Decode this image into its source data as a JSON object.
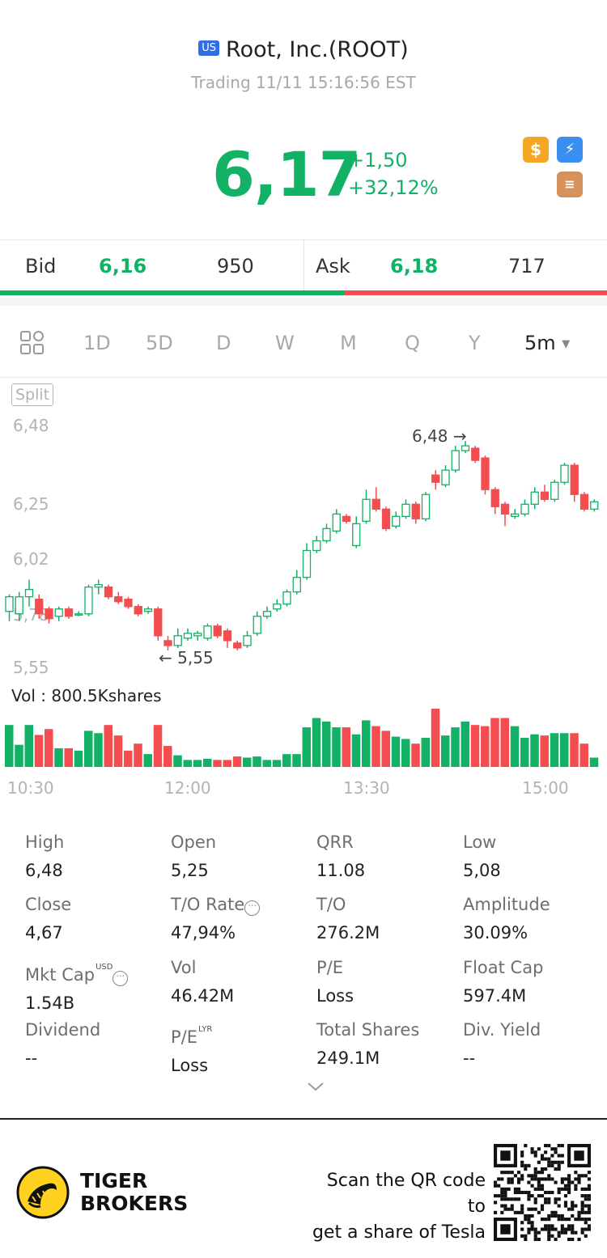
{
  "header": {
    "market_badge": "US",
    "title": "Root, Inc.(ROOT)",
    "status": "Trading 11/11 15:16:56 EST",
    "price": "6,17",
    "change": "+1,50",
    "change_pct": "+32,12%",
    "icons": [
      "dollar-icon",
      "lightning-icon",
      "stack-a-icon"
    ],
    "colors": {
      "up": "#12b165",
      "down": "#f34d50"
    }
  },
  "quote": {
    "bid_label": "Bid",
    "bid_price": "6,16",
    "bid_size": "950",
    "ask_label": "Ask",
    "ask_price": "6,18",
    "ask_size": "717"
  },
  "tabs": {
    "items": [
      "1D",
      "5D",
      "D",
      "W",
      "M",
      "Q",
      "Y"
    ],
    "active": "5m"
  },
  "chart": {
    "split_label": "Split",
    "yticks": [
      "6,48",
      "6,25",
      "6,02",
      "5,78",
      "5,55"
    ],
    "max_label": "6,48",
    "min_label": "5,55",
    "volume_label": "Vol  : 800.5Kshares",
    "xticks": [
      "10:30",
      "12:00",
      "13:30",
      "15:00"
    ]
  },
  "chart_data": {
    "type": "candlestick",
    "interval": "5m",
    "ylim": [
      5.55,
      6.48
    ],
    "candles": [
      [
        5.78,
        5.84,
        5.85,
        5.74
      ],
      [
        5.77,
        5.84,
        5.86,
        5.74
      ],
      [
        5.84,
        5.87,
        5.91,
        5.8
      ],
      [
        5.83,
        5.77,
        5.85,
        5.75
      ],
      [
        5.79,
        5.75,
        5.8,
        5.73
      ],
      [
        5.76,
        5.79,
        5.8,
        5.74
      ],
      [
        5.79,
        5.76,
        5.8,
        5.75
      ],
      [
        5.77,
        5.77,
        5.78,
        5.76
      ],
      [
        5.77,
        5.88,
        5.89,
        5.76
      ],
      [
        5.88,
        5.89,
        5.91,
        5.85
      ],
      [
        5.88,
        5.84,
        5.89,
        5.83
      ],
      [
        5.84,
        5.82,
        5.86,
        5.81
      ],
      [
        5.83,
        5.8,
        5.84,
        5.79
      ],
      [
        5.8,
        5.77,
        5.81,
        5.76
      ],
      [
        5.78,
        5.79,
        5.8,
        5.77
      ],
      [
        5.79,
        5.68,
        5.8,
        5.66
      ],
      [
        5.66,
        5.64,
        5.68,
        5.62
      ],
      [
        5.64,
        5.68,
        5.71,
        5.63
      ],
      [
        5.67,
        5.69,
        5.71,
        5.66
      ],
      [
        5.68,
        5.69,
        5.7,
        5.66
      ],
      [
        5.67,
        5.72,
        5.73,
        5.66
      ],
      [
        5.72,
        5.68,
        5.73,
        5.67
      ],
      [
        5.7,
        5.66,
        5.71,
        5.63
      ],
      [
        5.65,
        5.63,
        5.66,
        5.62
      ],
      [
        5.64,
        5.68,
        5.7,
        5.63
      ],
      [
        5.69,
        5.76,
        5.78,
        5.68
      ],
      [
        5.76,
        5.78,
        5.8,
        5.75
      ],
      [
        5.79,
        5.81,
        5.83,
        5.78
      ],
      [
        5.81,
        5.86,
        5.87,
        5.8
      ],
      [
        5.86,
        5.92,
        5.95,
        5.85
      ],
      [
        5.92,
        6.03,
        6.06,
        5.91
      ],
      [
        6.03,
        6.07,
        6.09,
        6.02
      ],
      [
        6.07,
        6.12,
        6.14,
        6.06
      ],
      [
        6.11,
        6.18,
        6.2,
        6.1
      ],
      [
        6.17,
        6.15,
        6.18,
        6.14
      ],
      [
        6.05,
        6.14,
        6.17,
        6.04
      ],
      [
        6.15,
        6.24,
        6.28,
        6.14
      ],
      [
        6.24,
        6.2,
        6.29,
        6.19
      ],
      [
        6.2,
        6.12,
        6.21,
        6.11
      ],
      [
        6.13,
        6.17,
        6.19,
        6.12
      ],
      [
        6.17,
        6.22,
        6.24,
        6.16
      ],
      [
        6.22,
        6.16,
        6.23,
        6.14
      ],
      [
        6.16,
        6.26,
        6.27,
        6.15
      ],
      [
        6.34,
        6.31,
        6.36,
        6.28
      ],
      [
        6.3,
        6.36,
        6.38,
        6.29
      ],
      [
        6.36,
        6.44,
        6.46,
        6.35
      ],
      [
        6.44,
        6.46,
        6.48,
        6.43
      ],
      [
        6.45,
        6.4,
        6.46,
        6.39
      ],
      [
        6.41,
        6.28,
        6.42,
        6.26
      ],
      [
        6.28,
        6.21,
        6.29,
        6.18
      ],
      [
        6.22,
        6.18,
        6.23,
        6.13
      ],
      [
        6.17,
        6.18,
        6.2,
        6.16
      ],
      [
        6.18,
        6.22,
        6.24,
        6.17
      ],
      [
        6.22,
        6.27,
        6.29,
        6.2
      ],
      [
        6.27,
        6.24,
        6.3,
        6.23
      ],
      [
        6.24,
        6.31,
        6.32,
        6.23
      ],
      [
        6.31,
        6.38,
        6.39,
        6.3
      ],
      [
        6.38,
        6.26,
        6.39,
        6.23
      ],
      [
        6.26,
        6.2,
        6.27,
        6.19
      ],
      [
        6.2,
        6.23,
        6.24,
        6.19
      ]
    ],
    "volume_rel": [
      0.72,
      0.38,
      0.72,
      0.55,
      0.65,
      0.32,
      0.32,
      0.28,
      0.62,
      0.58,
      0.72,
      0.54,
      0.28,
      0.4,
      0.22,
      0.72,
      0.36,
      0.2,
      0.12,
      0.12,
      0.14,
      0.12,
      0.12,
      0.18,
      0.16,
      0.18,
      0.12,
      0.12,
      0.22,
      0.22,
      0.68,
      0.84,
      0.78,
      0.68,
      0.68,
      0.56,
      0.8,
      0.7,
      0.62,
      0.52,
      0.48,
      0.4,
      0.5,
      1.0,
      0.54,
      0.68,
      0.78,
      0.72,
      0.7,
      0.84,
      0.84,
      0.7,
      0.5,
      0.56,
      0.54,
      0.58,
      0.58,
      0.58,
      0.4,
      0.16
    ]
  },
  "stats": [
    {
      "label": "High",
      "value": "6,48"
    },
    {
      "label": "Open",
      "value": "5,25"
    },
    {
      "label": "QRR",
      "value": "11.08"
    },
    {
      "label": "Low",
      "value": "5,08"
    },
    {
      "label": "Close",
      "value": "4,67"
    },
    {
      "label": "T/O Rate",
      "value": "47,94%"
    },
    {
      "label": "T/O",
      "value": "276.2M"
    },
    {
      "label": "Amplitude",
      "value": "30.09%"
    },
    {
      "label": "Mkt Cap",
      "value": "1.54B",
      "sup": "USD"
    },
    {
      "label": "Vol",
      "value": "46.42M"
    },
    {
      "label": "P/E",
      "value": "Loss"
    },
    {
      "label": "Float Cap",
      "value": "597.4M"
    },
    {
      "label": "Dividend",
      "value": "--"
    },
    {
      "label": "P/E",
      "value": "Loss",
      "sup": "LYR"
    },
    {
      "label": "Total Shares",
      "value": "249.1M"
    },
    {
      "label": "Div. Yield",
      "value": "--"
    }
  ],
  "footer": {
    "brand_line1": "TIGER",
    "brand_line2": "BROKERS",
    "promo_line1": "Scan the QR code to",
    "promo_line2": "get a share of Tesla"
  }
}
